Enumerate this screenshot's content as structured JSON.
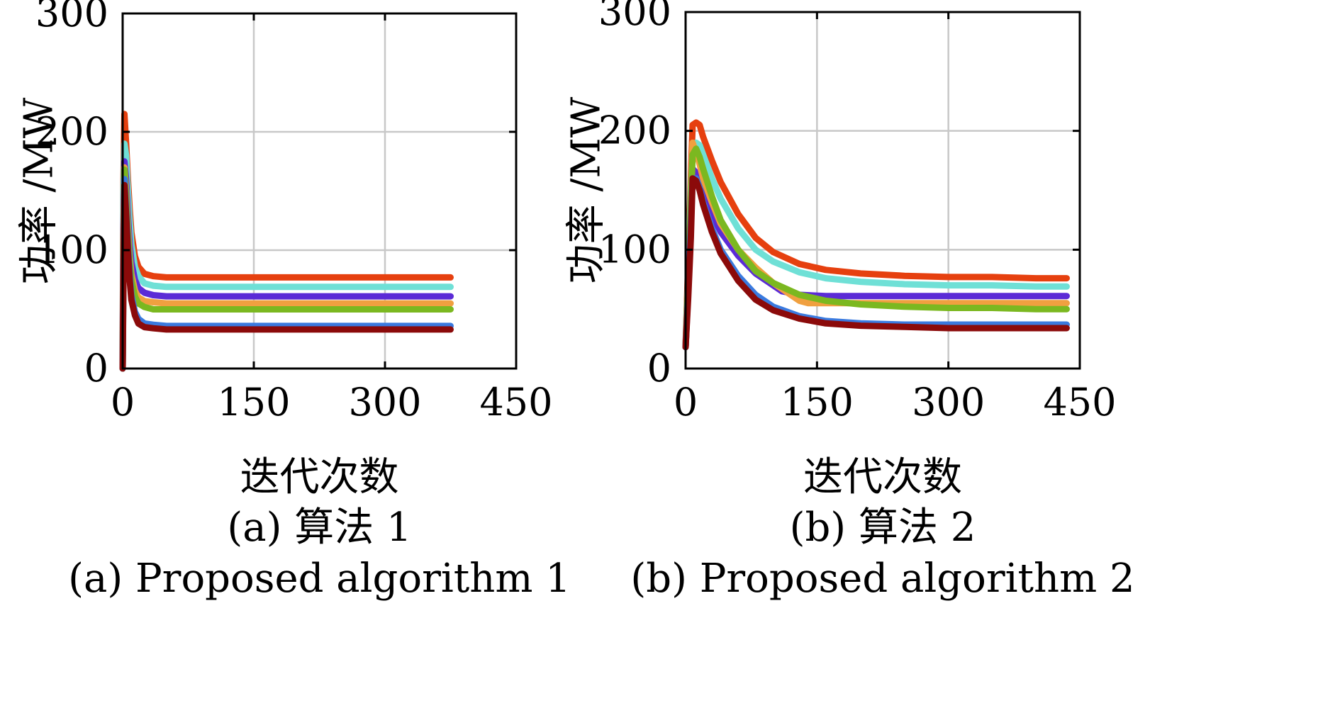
{
  "chart_data": [
    {
      "type": "line",
      "caption_cn": "(a) 算法 1",
      "caption_en": "(a) Proposed algorithm 1",
      "xlabel": "迭代次数",
      "ylabel": "功率 /MW",
      "xlim": [
        0,
        450
      ],
      "ylim": [
        0,
        300
      ],
      "xticks": [
        0,
        150,
        300,
        450
      ],
      "yticks": [
        0,
        100,
        200,
        300
      ],
      "grid": true,
      "series": [
        {
          "color": "#e6400f",
          "x": [
            0,
            1,
            2,
            4,
            6,
            8,
            10,
            14,
            18,
            25,
            35,
            50,
            80,
            375
          ],
          "y": [
            0,
            160,
            215,
            190,
            160,
            135,
            115,
            95,
            86,
            80,
            78,
            77,
            77,
            77
          ]
        },
        {
          "color": "#6fe0d6",
          "x": [
            0,
            1,
            2,
            4,
            6,
            8,
            10,
            14,
            18,
            25,
            35,
            50,
            80,
            375
          ],
          "y": [
            0,
            150,
            190,
            180,
            150,
            125,
            105,
            86,
            78,
            72,
            70,
            69,
            69,
            69
          ]
        },
        {
          "color": "#5b2bd6",
          "x": [
            0,
            1,
            2,
            4,
            6,
            8,
            10,
            14,
            18,
            25,
            35,
            50,
            80,
            375
          ],
          "y": [
            0,
            120,
            175,
            160,
            130,
            105,
            90,
            75,
            68,
            64,
            62,
            61,
            61,
            61
          ]
        },
        {
          "color": "#f0a040",
          "x": [
            0,
            1,
            2,
            4,
            6,
            8,
            10,
            14,
            18,
            25,
            35,
            50,
            80,
            375
          ],
          "y": [
            0,
            110,
            170,
            150,
            120,
            95,
            80,
            66,
            60,
            57,
            56,
            55,
            55,
            55
          ]
        },
        {
          "color": "#7bb820",
          "x": [
            0,
            1,
            2,
            4,
            6,
            8,
            10,
            14,
            18,
            25,
            35,
            50,
            80,
            375
          ],
          "y": [
            0,
            100,
            168,
            145,
            115,
            90,
            75,
            61,
            55,
            52,
            50,
            50,
            50,
            50
          ]
        },
        {
          "color": "#3a7adf",
          "x": [
            0,
            1,
            2,
            4,
            6,
            8,
            10,
            14,
            18,
            25,
            35,
            50,
            80,
            375
          ],
          "y": [
            0,
            90,
            160,
            135,
            105,
            80,
            62,
            48,
            42,
            38,
            37,
            36,
            36,
            36
          ]
        },
        {
          "color": "#8b0a0a",
          "x": [
            0,
            1,
            2,
            4,
            6,
            8,
            10,
            14,
            18,
            25,
            35,
            50,
            80,
            375
          ],
          "y": [
            0,
            80,
            155,
            130,
            100,
            75,
            58,
            45,
            38,
            35,
            34,
            33,
            33,
            33
          ]
        }
      ]
    },
    {
      "type": "line",
      "caption_cn": "(b) 算法 2",
      "caption_en": "(b) Proposed algorithm 2",
      "xlabel": "迭代次数",
      "ylabel": "功率 /MW",
      "xlim": [
        0,
        450
      ],
      "ylim": [
        0,
        300
      ],
      "xticks": [
        0,
        150,
        300,
        450
      ],
      "yticks": [
        0,
        100,
        200,
        300
      ],
      "grid": true,
      "series": [
        {
          "color": "#e6400f",
          "x": [
            0,
            3,
            6,
            8,
            12,
            16,
            20,
            30,
            40,
            60,
            80,
            100,
            130,
            160,
            200,
            250,
            300,
            350,
            400,
            435
          ],
          "y": [
            18,
            90,
            160,
            205,
            207,
            205,
            195,
            175,
            157,
            130,
            110,
            98,
            88,
            83,
            80,
            78,
            77,
            77,
            76,
            76
          ]
        },
        {
          "color": "#6fe0d6",
          "x": [
            0,
            3,
            6,
            8,
            12,
            16,
            20,
            30,
            40,
            60,
            80,
            100,
            130,
            160,
            200,
            250,
            300,
            350,
            400,
            435
          ],
          "y": [
            18,
            80,
            150,
            185,
            190,
            188,
            180,
            160,
            143,
            118,
            100,
            90,
            81,
            76,
            73,
            71,
            70,
            70,
            69,
            69
          ]
        },
        {
          "color": "#5b2bd6",
          "x": [
            0,
            3,
            6,
            8,
            12,
            16,
            20,
            30,
            40,
            60,
            80,
            100,
            110,
            130,
            160,
            200,
            250,
            300,
            350,
            400,
            435
          ],
          "y": [
            18,
            70,
            130,
            168,
            165,
            160,
            150,
            130,
            115,
            95,
            80,
            70,
            65,
            62,
            61,
            61,
            61,
            61,
            61,
            61,
            61
          ]
        },
        {
          "color": "#f0a040",
          "x": [
            0,
            3,
            6,
            8,
            12,
            16,
            20,
            30,
            40,
            60,
            80,
            100,
            130,
            140,
            160,
            200,
            250,
            300,
            350,
            400,
            435
          ],
          "y": [
            18,
            75,
            140,
            190,
            182,
            172,
            160,
            140,
            122,
            100,
            85,
            72,
            57,
            55,
            55,
            55,
            55,
            55,
            55,
            55,
            55
          ]
        },
        {
          "color": "#7bb820",
          "x": [
            0,
            3,
            6,
            8,
            12,
            16,
            20,
            30,
            40,
            60,
            80,
            100,
            130,
            160,
            200,
            250,
            300,
            350,
            400,
            435
          ],
          "y": [
            18,
            72,
            135,
            180,
            185,
            178,
            168,
            145,
            125,
            100,
            82,
            72,
            62,
            57,
            54,
            52,
            51,
            51,
            50,
            50
          ]
        },
        {
          "color": "#3a7adf",
          "x": [
            0,
            3,
            6,
            8,
            12,
            16,
            20,
            30,
            40,
            60,
            80,
            100,
            130,
            160,
            200,
            250,
            300,
            350,
            400,
            435
          ],
          "y": [
            18,
            65,
            120,
            160,
            160,
            152,
            140,
            118,
            100,
            78,
            62,
            52,
            44,
            40,
            38,
            37,
            37,
            37,
            37,
            37
          ]
        },
        {
          "color": "#8b0a0a",
          "x": [
            0,
            3,
            6,
            8,
            12,
            16,
            20,
            30,
            40,
            60,
            80,
            100,
            130,
            160,
            200,
            250,
            300,
            350,
            400,
            435
          ],
          "y": [
            18,
            60,
            110,
            160,
            158,
            150,
            138,
            115,
            97,
            74,
            58,
            49,
            42,
            38,
            36,
            35,
            34,
            34,
            34,
            34
          ]
        }
      ]
    }
  ]
}
